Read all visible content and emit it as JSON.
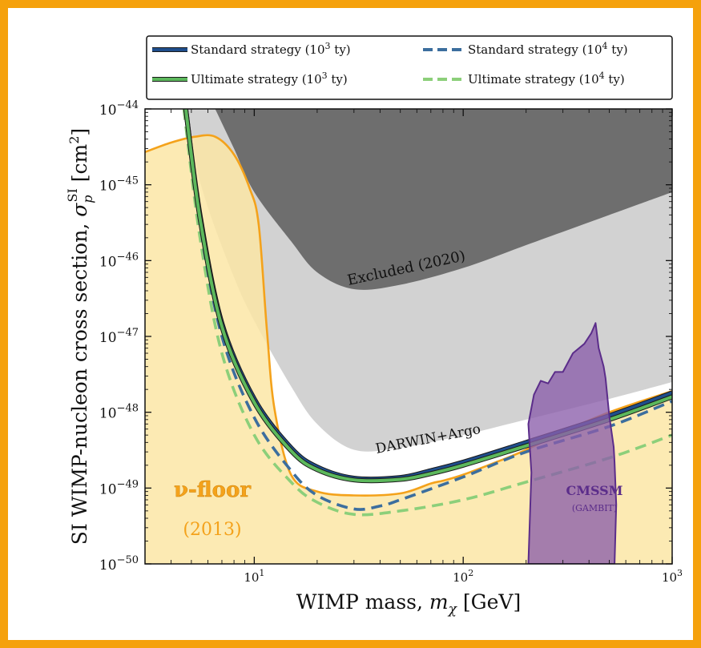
{
  "theme": {
    "border_color": "#f5a10c",
    "background": "#ffffff"
  },
  "chart_data": {
    "type": "line",
    "x_scale": "log",
    "y_scale": "log",
    "xlim": [
      3,
      1000
    ],
    "ylim": [
      1e-50,
      1e-44
    ],
    "xlabel": "WIMP mass, m_χ [GeV]",
    "ylabel": "SI WIMP-nucleon cross section, σ_p^SI [cm²]",
    "x_ticks": [
      {
        "value": 10,
        "base": "10",
        "exp": "1"
      },
      {
        "value": 100,
        "base": "10",
        "exp": "2"
      },
      {
        "value": 1000,
        "base": "10",
        "exp": "3"
      }
    ],
    "y_ticks": [
      {
        "value": 1e-44,
        "base": "10",
        "exp": "−44"
      },
      {
        "value": 1e-45,
        "base": "10",
        "exp": "−45"
      },
      {
        "value": 1e-46,
        "base": "10",
        "exp": "−46"
      },
      {
        "value": 1e-47,
        "base": "10",
        "exp": "−47"
      },
      {
        "value": 1e-48,
        "base": "10",
        "exp": "−48"
      },
      {
        "value": 1e-49,
        "base": "10",
        "exp": "−49"
      },
      {
        "value": 1e-50,
        "base": "10",
        "exp": "−50"
      }
    ],
    "legend": {
      "placement": "top, above plot",
      "entries": [
        {
          "label": "Standard strategy (10",
          "sup": "3",
          "tail": " ty)",
          "color": "#1f4e8c",
          "dash": "solid"
        },
        {
          "label": "Standard strategy (10",
          "sup": "4",
          "tail": " ty)",
          "color": "#3c6e9e",
          "dash": "dashed"
        },
        {
          "label": "Ultimate strategy (10",
          "sup": "3",
          "tail": " ty)",
          "color": "#5cb85c",
          "dash": "solid"
        },
        {
          "label": "Ultimate strategy (10",
          "sup": "4",
          "tail": " ty)",
          "color": "#8ccf7a",
          "dash": "dashed"
        }
      ]
    },
    "regions": [
      {
        "name": "Excluded (2020)",
        "fill": "#6e6e6e",
        "label": "Excluded (2020)",
        "upper": [
          [
            3,
            1e-44
          ],
          [
            1000,
            1e-44
          ]
        ],
        "lower": [
          [
            6.5,
            1e-44
          ],
          [
            8,
            3e-45
          ],
          [
            10,
            8e-46
          ],
          [
            15,
            1.8e-46
          ],
          [
            20,
            7e-47
          ],
          [
            30,
            4.2e-47
          ],
          [
            50,
            4.8e-47
          ],
          [
            100,
            8e-47
          ],
          [
            200,
            1.6e-46
          ],
          [
            500,
            4e-46
          ],
          [
            1000,
            8e-46
          ]
        ]
      },
      {
        "name": "DARWIN+Argo",
        "fill": "#d2d2d2",
        "label": "DARWIN+Argo",
        "upper": [
          [
            3,
            1e-44
          ],
          [
            1000,
            1e-44
          ]
        ],
        "lower": [
          [
            4.6,
            1e-44
          ],
          [
            5,
            3e-45
          ],
          [
            6,
            5e-46
          ],
          [
            8,
            6e-47
          ],
          [
            10,
            1.6e-47
          ],
          [
            15,
            2.2e-48
          ],
          [
            20,
            7e-49
          ],
          [
            30,
            3.2e-49
          ],
          [
            50,
            3.4e-49
          ],
          [
            100,
            5e-49
          ],
          [
            200,
            8e-49
          ],
          [
            500,
            1.5e-48
          ],
          [
            1000,
            2.5e-48
          ]
        ]
      },
      {
        "name": "ν-floor (2013)",
        "fill": "#fbe6a6",
        "edge": "#f4a21b",
        "label_main": "ν-floor",
        "label_sub": "(2013)",
        "boundary": [
          [
            3,
            2.7e-45
          ],
          [
            4,
            3.6e-45
          ],
          [
            5.2,
            4.3e-45
          ],
          [
            6.5,
            4.3e-45
          ],
          [
            8,
            2.5e-45
          ],
          [
            9.5,
            9e-46
          ],
          [
            10.5,
            3e-46
          ],
          [
            11.5,
            1.2e-47
          ],
          [
            12.5,
            1.1e-48
          ],
          [
            15,
            1.5e-49
          ],
          [
            20,
            9e-50
          ],
          [
            30,
            8e-50
          ],
          [
            50,
            8.5e-50
          ],
          [
            70,
            1.15e-49
          ],
          [
            80,
            1.25e-49
          ],
          [
            100,
            1.5e-49
          ],
          [
            150,
            2.3e-49
          ],
          [
            200,
            3.2e-49
          ],
          [
            300,
            5.5e-49
          ],
          [
            500,
            1e-48
          ],
          [
            1000,
            1.9e-48
          ]
        ]
      },
      {
        "name": "CMSSM",
        "fill": "#8b5dab",
        "edge": "#5b2d8a",
        "label_main": "CMSSM",
        "label_sub": "(GAMBIT)",
        "boundary": [
          [
            205,
            1e-50
          ],
          [
            212,
            1.6e-49
          ],
          [
            205,
            7e-49
          ],
          [
            218,
            1.7e-48
          ],
          [
            235,
            2.6e-48
          ],
          [
            255,
            2.4e-48
          ],
          [
            275,
            3.4e-48
          ],
          [
            300,
            3.4e-48
          ],
          [
            335,
            6e-48
          ],
          [
            380,
            8e-48
          ],
          [
            410,
            1.1e-47
          ],
          [
            430,
            1.5e-47
          ],
          [
            445,
            7e-48
          ],
          [
            470,
            4e-48
          ],
          [
            480,
            2.8e-48
          ],
          [
            500,
            9e-49
          ],
          [
            525,
            3.5e-49
          ],
          [
            530,
            2.2e-49
          ],
          [
            540,
            6e-50
          ],
          [
            530,
            1e-50
          ]
        ]
      }
    ],
    "series": [
      {
        "name": "Standard strategy (10³ ty)",
        "color": "#1f4e8c",
        "dash": "solid",
        "points": [
          [
            4.7,
            1e-44
          ],
          [
            5.5,
            4e-46
          ],
          [
            7,
            1.5e-47
          ],
          [
            10,
            1.5e-48
          ],
          [
            15,
            3.4e-49
          ],
          [
            20,
            1.9e-49
          ],
          [
            30,
            1.35e-49
          ],
          [
            50,
            1.38e-49
          ],
          [
            70,
            1.7e-49
          ],
          [
            100,
            2.2e-49
          ],
          [
            200,
            4e-49
          ],
          [
            500,
            9e-49
          ],
          [
            1000,
            1.8e-48
          ]
        ]
      },
      {
        "name": "Ultimate strategy (10³ ty)",
        "color": "#5cb85c",
        "dash": "solid",
        "points": [
          [
            4.7,
            1e-44
          ],
          [
            5.5,
            3.6e-46
          ],
          [
            7,
            1.35e-47
          ],
          [
            10,
            1.35e-48
          ],
          [
            15,
            3.1e-49
          ],
          [
            20,
            1.75e-49
          ],
          [
            30,
            1.28e-49
          ],
          [
            50,
            1.3e-49
          ],
          [
            70,
            1.55e-49
          ],
          [
            100,
            2e-49
          ],
          [
            200,
            3.6e-49
          ],
          [
            500,
            8e-49
          ],
          [
            1000,
            1.6e-48
          ]
        ]
      },
      {
        "name": "Standard strategy (10⁴ ty)",
        "color": "#3c6e9e",
        "dash": "dashed",
        "points": [
          [
            4.7,
            1e-44
          ],
          [
            5.5,
            3e-46
          ],
          [
            7,
            1e-47
          ],
          [
            10,
            8.5e-49
          ],
          [
            15,
            1.7e-49
          ],
          [
            20,
            8e-50
          ],
          [
            30,
            5.3e-50
          ],
          [
            40,
            5.8e-50
          ],
          [
            50,
            7e-50
          ],
          [
            100,
            1.4e-49
          ],
          [
            200,
            3e-49
          ],
          [
            500,
            6.5e-49
          ],
          [
            1000,
            1.4e-48
          ]
        ]
      },
      {
        "name": "Ultimate strategy (10⁴ ty)",
        "color": "#8ccf7a",
        "dash": "dashed",
        "points": [
          [
            4.6,
            1e-44
          ],
          [
            5.5,
            2e-46
          ],
          [
            7,
            6e-48
          ],
          [
            10,
            5e-49
          ],
          [
            15,
            1.2e-49
          ],
          [
            20,
            6.5e-50
          ],
          [
            30,
            4.5e-50
          ],
          [
            50,
            5e-50
          ],
          [
            100,
            7e-50
          ],
          [
            200,
            1.2e-49
          ],
          [
            500,
            2.5e-49
          ],
          [
            1000,
            5e-49
          ]
        ]
      }
    ]
  }
}
